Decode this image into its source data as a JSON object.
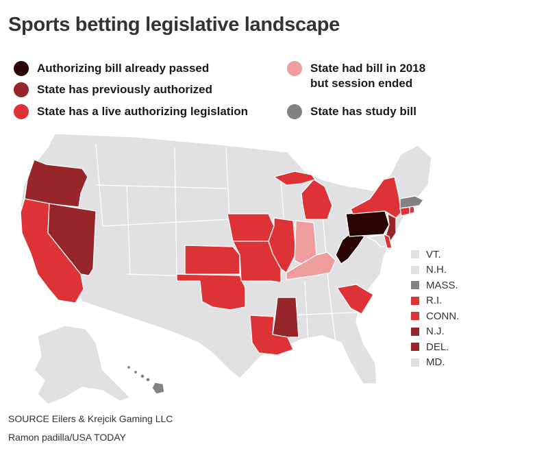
{
  "title": "Sports betting legislative landscape",
  "colors": {
    "passed": "#2a0303",
    "previously": "#962629",
    "live": "#dd3336",
    "ended": "#ef9c9c",
    "study": "#828282",
    "none": "#e1e1e3"
  },
  "legend": [
    {
      "label": "Authorizing bill already passed",
      "color": "#2a0303"
    },
    {
      "label": "State has previously authorized",
      "color": "#962629"
    },
    {
      "label": "State has a live authorizing legislation",
      "color": "#dd3336"
    },
    {
      "label": "State had bill in 2018\nbut session ended",
      "color": "#ef9c9c"
    },
    {
      "label": "State has study bill",
      "color": "#828282"
    }
  ],
  "small_states": [
    {
      "label": "VT.",
      "color": "#e1e1e3"
    },
    {
      "label": "N.H.",
      "color": "#e1e1e3"
    },
    {
      "label": "MASS.",
      "color": "#828282"
    },
    {
      "label": "R.I.",
      "color": "#dd3336"
    },
    {
      "label": "CONN.",
      "color": "#dd3336"
    },
    {
      "label": "N.J.",
      "color": "#962629"
    },
    {
      "label": "DEL.",
      "color": "#962629"
    },
    {
      "label": "MD.",
      "color": "#e1e1e3"
    }
  ],
  "source": "SOURCE Eilers & Krejcik Gaming LLC",
  "credit": "Ramon padilla/USA TODAY"
}
